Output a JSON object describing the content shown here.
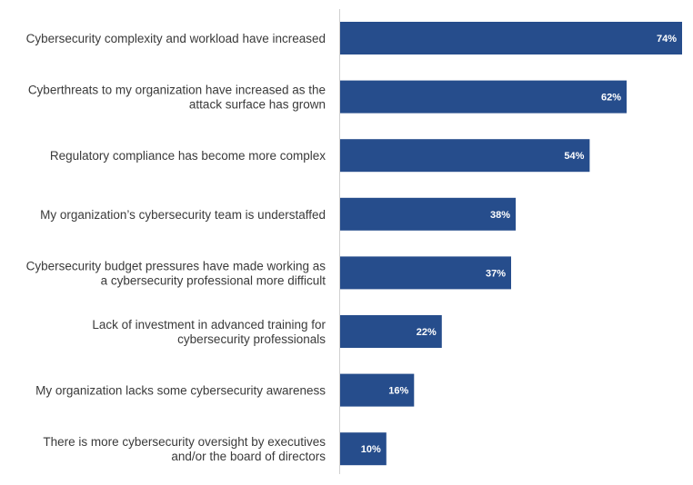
{
  "colors": {
    "bar": "#264d8c",
    "value_text": "#ffffff",
    "label_text": "#3a3a3a",
    "axis": "#d0d0d0"
  },
  "chart_data": {
    "type": "bar",
    "orientation": "horizontal",
    "title": "",
    "xlabel": "",
    "ylabel": "",
    "xlim": [
      0,
      74
    ],
    "grid": false,
    "legend": "none",
    "unit": "%",
    "categories": [
      [
        "Cybersecurity complexity and workload have increased"
      ],
      [
        "Cyberthreats to my organization have increased as the",
        "attack surface has grown"
      ],
      [
        "Regulatory compliance has become more complex"
      ],
      [
        "My organization’s cybersecurity team is understaffed"
      ],
      [
        "Cybersecurity budget pressures have made working as",
        "a cybersecurity professional more difficult"
      ],
      [
        "Lack of investment in advanced training for",
        "cybersecurity professionals"
      ],
      [
        "My organization lacks some cybersecurity awareness"
      ],
      [
        "There is more cybersecurity oversight by executives",
        "and/or the board of directors"
      ]
    ],
    "values": [
      74,
      62,
      54,
      38,
      37,
      22,
      16,
      10
    ],
    "value_labels": [
      "74%",
      "62%",
      "54%",
      "38%",
      "37%",
      "22%",
      "16%",
      "10%"
    ]
  }
}
